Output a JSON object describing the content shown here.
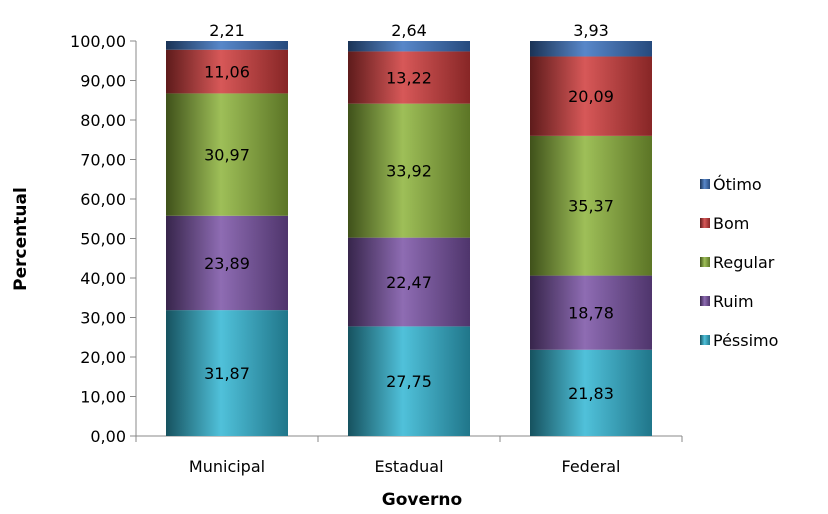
{
  "chart_data": {
    "type": "bar",
    "stacked": true,
    "xlabel": "Governo",
    "ylabel": "Percentual",
    "ylim": [
      0,
      100
    ],
    "yticks": [
      "0,00",
      "10,00",
      "20,00",
      "30,00",
      "40,00",
      "50,00",
      "60,00",
      "70,00",
      "80,00",
      "90,00",
      "100,00"
    ],
    "categories": [
      "Municipal",
      "Estadual",
      "Federal"
    ],
    "legend_position": "right",
    "series": [
      {
        "name": "Péssimo",
        "color": "#31B6D4",
        "values": [
          31.87,
          27.75,
          21.83
        ],
        "labels": [
          "31,87",
          "27,75",
          "21,83"
        ]
      },
      {
        "name": "Ruim",
        "color": "#7A52A6",
        "values": [
          23.89,
          22.47,
          18.78
        ],
        "labels": [
          "23,89",
          "22,47",
          "18,78"
        ]
      },
      {
        "name": "Regular",
        "color": "#8DB43A",
        "values": [
          30.97,
          33.92,
          35.37
        ],
        "labels": [
          "30,97",
          "33,92",
          "35,37"
        ]
      },
      {
        "name": "Bom",
        "color": "#D03B3B",
        "values": [
          11.06,
          13.22,
          20.09
        ],
        "labels": [
          "11,06",
          "13,22",
          "20,09"
        ]
      },
      {
        "name": "Ótimo",
        "color": "#3A72C0",
        "values": [
          2.21,
          2.64,
          3.93
        ],
        "labels": [
          "2,21",
          "2,64",
          "3,93"
        ]
      }
    ],
    "legend_order": [
      "Ótimo",
      "Bom",
      "Regular",
      "Ruim",
      "Péssimo"
    ]
  }
}
